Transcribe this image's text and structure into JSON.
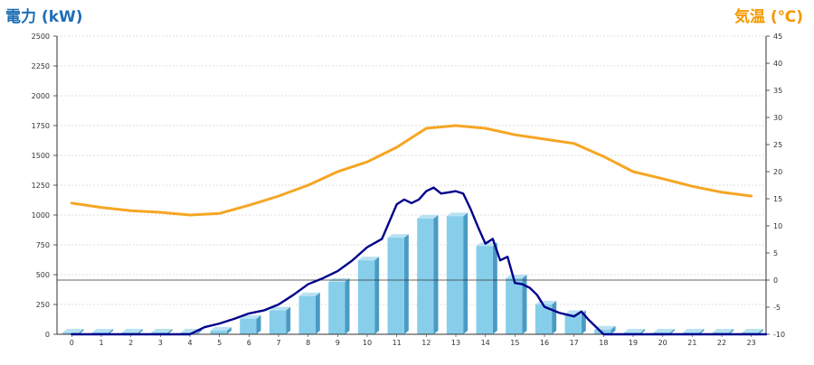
{
  "chart_data": {
    "type": "bar",
    "ylabel": "電力 (kW)",
    "y2label": "気温 (℃)",
    "categories": [
      "0",
      "1",
      "2",
      "3",
      "4",
      "5",
      "6",
      "7",
      "8",
      "9",
      "10",
      "11",
      "12",
      "13",
      "14",
      "15",
      "16",
      "17",
      "18",
      "19",
      "20",
      "21",
      "22",
      "23"
    ],
    "ylim": [
      0,
      2500
    ],
    "y2lim": [
      -10,
      45
    ],
    "yticks": [
      0,
      250,
      500,
      750,
      1000,
      1250,
      1500,
      1750,
      2000,
      2250,
      2500
    ],
    "y2ticks": [
      -10,
      -5,
      0,
      5,
      10,
      15,
      20,
      25,
      30,
      35,
      40,
      45
    ],
    "grid": true,
    "colors": {
      "bar": "#87ceeb",
      "bar_side": "#4a9bc4",
      "bar_top": "#b8e2f2",
      "power_line": "#00008b",
      "temperature_line": "#f5a623",
      "left_title": "#1e6eb4",
      "right_title": "#f39800"
    },
    "series": [
      {
        "type": "bar",
        "axis": "left",
        "values": [
          15,
          15,
          15,
          15,
          15,
          30,
          130,
          200,
          320,
          440,
          620,
          810,
          970,
          990,
          740,
          470,
          250,
          170,
          40,
          15,
          15,
          15,
          15,
          15
        ]
      },
      {
        "type": "line",
        "axis": "left",
        "x": [
          0,
          1,
          2,
          3,
          4,
          4.5,
          5,
          5.5,
          6,
          6.5,
          7,
          7.5,
          8,
          8.5,
          9,
          9.5,
          10,
          10.5,
          11,
          11.25,
          11.5,
          11.75,
          12,
          12.25,
          12.5,
          12.75,
          13,
          13.25,
          13.5,
          13.75,
          14,
          14.25,
          14.5,
          14.75,
          15,
          15.25,
          15.5,
          15.75,
          16,
          16.5,
          17,
          17.25,
          17.5,
          18,
          18.5,
          19,
          20,
          21,
          22,
          23,
          23.5
        ],
        "values": [
          0,
          0,
          0,
          0,
          0,
          60,
          90,
          130,
          175,
          200,
          250,
          330,
          420,
          470,
          530,
          620,
          730,
          800,
          1090,
          1130,
          1100,
          1130,
          1200,
          1230,
          1180,
          1190,
          1200,
          1180,
          1050,
          900,
          760,
          800,
          620,
          650,
          430,
          420,
          390,
          330,
          230,
          180,
          150,
          190,
          120,
          0,
          0,
          0,
          0,
          0,
          0,
          0,
          0
        ]
      },
      {
        "type": "line",
        "axis": "right",
        "x": [
          0,
          1,
          2,
          3,
          4,
          5,
          6,
          7,
          8,
          9,
          10,
          11,
          12,
          13,
          14,
          15,
          16,
          17,
          18,
          19,
          20,
          21,
          22,
          23
        ],
        "values": [
          14.2,
          13.4,
          12.8,
          12.5,
          12.0,
          12.3,
          13.8,
          15.5,
          17.5,
          20.0,
          21.8,
          24.5,
          28.0,
          28.5,
          28.0,
          26.8,
          26.0,
          25.2,
          22.8,
          20.0,
          18.7,
          17.3,
          16.2,
          15.5
        ]
      }
    ]
  }
}
